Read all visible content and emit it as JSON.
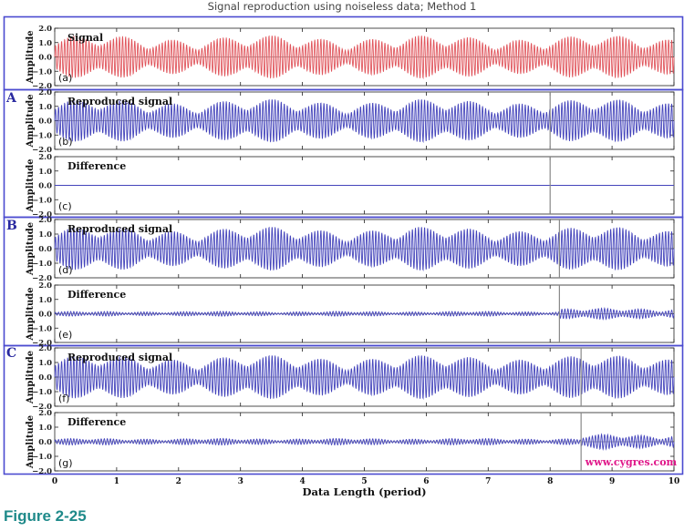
{
  "title": "Signal reproduction using noiseless data; Method 1",
  "figure_caption": "Figure 2-25",
  "credit": "www.cygres.com",
  "colors": {
    "signal": "#e0555c",
    "reproduced": "#4444bb",
    "difference": "#4444bb",
    "frame": "#4b4bd0",
    "marker": "#888888",
    "axis_grid": "#999999"
  },
  "chart_data": {
    "type": "line",
    "x_label": "Data Length (period)",
    "x_ticks": [
      "0",
      "1",
      "2",
      "3",
      "4",
      "5",
      "6",
      "7",
      "8",
      "9",
      "10"
    ],
    "xlim": [
      0,
      10
    ],
    "y_label": "Amplitude",
    "y_ticks": [
      "2.0",
      "1.0",
      "0.0",
      "−1.0",
      "−2.0"
    ],
    "ylim": [
      -2.0,
      2.0
    ],
    "groups": [
      {
        "letter": "",
        "panels": [
          {
            "tag": "(a)",
            "title": "Signal",
            "kind": "signal",
            "marker_x": null,
            "err_amp": 0
          }
        ]
      },
      {
        "letter": "A",
        "panels": [
          {
            "tag": "(b)",
            "title": "Reproduced signal",
            "kind": "reproduced",
            "marker_x": 8.0,
            "err_amp": 0
          },
          {
            "tag": "(c)",
            "title": "Difference",
            "kind": "difference",
            "marker_x": 8.0,
            "err_amp": 0
          }
        ]
      },
      {
        "letter": "B",
        "panels": [
          {
            "tag": "(d)",
            "title": "Reproduced signal",
            "kind": "reproduced",
            "marker_x": 8.15,
            "err_amp": 0.15
          },
          {
            "tag": "(e)",
            "title": "Difference",
            "kind": "difference",
            "marker_x": 8.15,
            "err_amp": 0.15
          }
        ]
      },
      {
        "letter": "C",
        "panels": [
          {
            "tag": "(f)",
            "title": "Reproduced signal",
            "kind": "reproduced",
            "marker_x": 8.5,
            "err_amp": 0.2
          },
          {
            "tag": "(g)",
            "title": "Difference",
            "kind": "difference",
            "marker_x": 8.5,
            "err_amp": 0.2
          }
        ]
      }
    ]
  }
}
